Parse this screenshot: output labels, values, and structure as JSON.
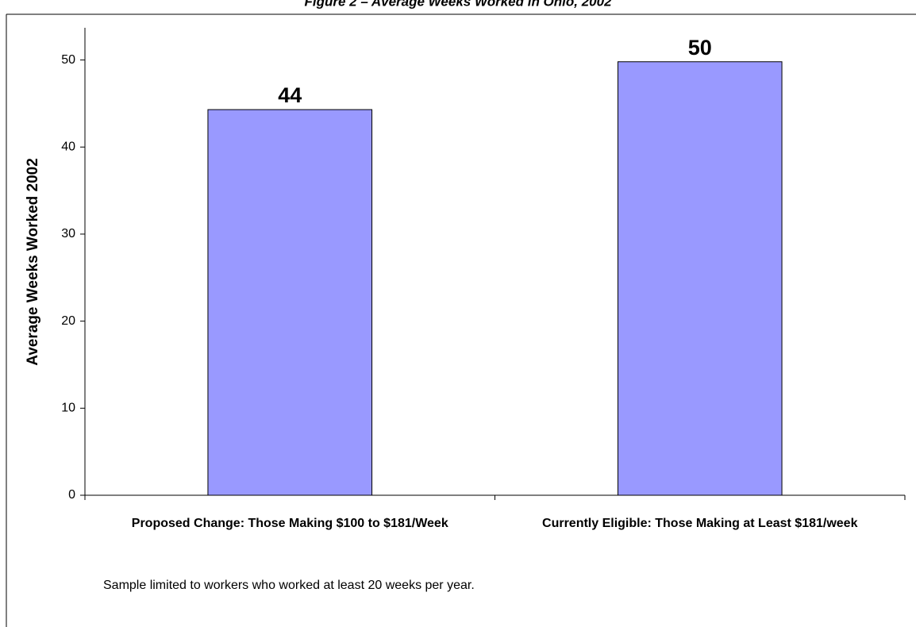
{
  "chart_data": {
    "type": "bar",
    "title": "Figure 2 – Average Weeks Worked in Ohio, 2002",
    "y_label": "Average Weeks Worked 2002",
    "note": "Sample limited to workers who worked at least 20 weeks per year.",
    "categories": [
      "Proposed Change: Those Making $100 to $181/Week",
      "Currently Eligible: Those Making at Least $181/week"
    ],
    "values": [
      44.3,
      49.8
    ],
    "value_labels": [
      "44",
      "50"
    ],
    "color": "#9999ff",
    "ylim": [
      0,
      53.7
    ],
    "yticks": [
      0,
      10,
      20,
      30,
      40,
      50
    ],
    "grid": false
  }
}
